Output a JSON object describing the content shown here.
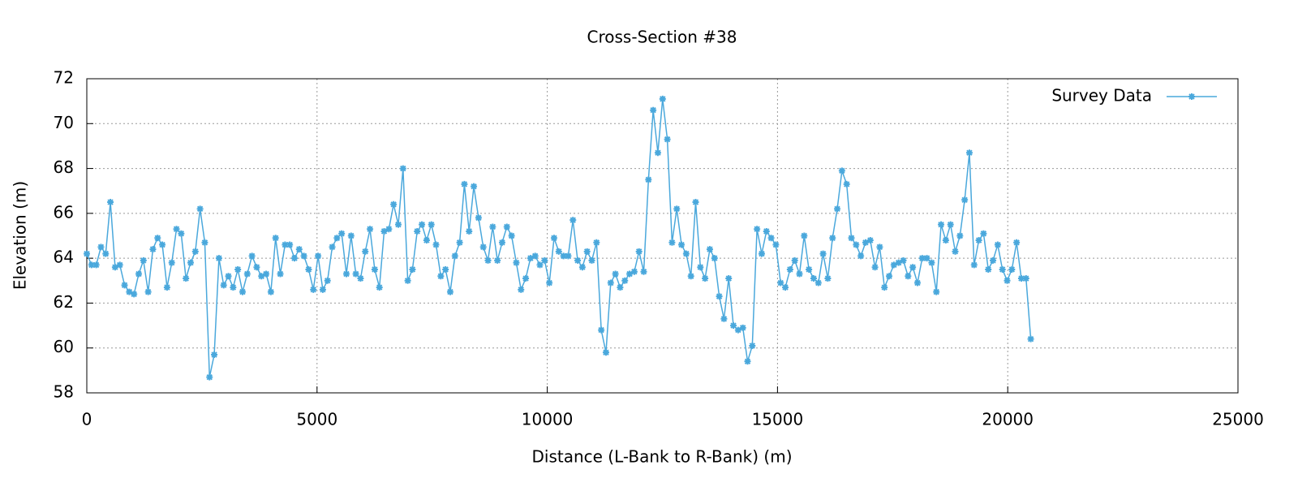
{
  "chart_data": {
    "type": "line",
    "title": "Cross-Section #38",
    "xlabel": "Distance (L-Bank to R-Bank) (m)",
    "ylabel": "Elevation (m)",
    "x": [
      0,
      102.5,
      205,
      307.5,
      410,
      512.5,
      615,
      717.5,
      820,
      922.5,
      1025,
      1127.5,
      1230,
      1332.5,
      1435,
      1537.5,
      1640,
      1742.5,
      1845,
      1947.5,
      2050,
      2152.5,
      2255,
      2357.5,
      2460,
      2562.5,
      2665,
      2767.5,
      2870,
      2972.5,
      3075,
      3177.5,
      3280,
      3382.5,
      3485,
      3587.5,
      3690,
      3792.5,
      3895,
      3997.5,
      4100,
      4202.5,
      4305,
      4407.5,
      4510,
      4612.5,
      4715,
      4817.5,
      4920,
      5022.5,
      5125,
      5227.5,
      5330,
      5432.5,
      5535,
      5637.5,
      5740,
      5842.5,
      5945,
      6047.5,
      6150,
      6252.5,
      6355,
      6457.5,
      6560,
      6662.5,
      6765,
      6867.5,
      6970,
      7072.5,
      7175,
      7277.5,
      7380,
      7482.5,
      7585,
      7687.5,
      7790,
      7892.5,
      7995,
      8097.5,
      8200,
      8302.5,
      8405,
      8507.5,
      8610,
      8712.5,
      8815,
      8917.5,
      9020,
      9122.5,
      9225,
      9327.5,
      9430,
      9532.5,
      9635,
      9737.5,
      9840,
      9942.5,
      10045,
      10147.5,
      10250,
      10352.5,
      10455,
      10557.5,
      10660,
      10762.5,
      10865,
      10967.5,
      11070,
      11172.5,
      11275,
      11377.5,
      11480,
      11582.5,
      11685,
      11787.5,
      11890,
      11992.5,
      12095,
      12197.5,
      12300,
      12402.5,
      12505,
      12607.5,
      12710,
      12812.5,
      12915,
      13017.5,
      13120,
      13222.5,
      13325,
      13427.5,
      13530,
      13632.5,
      13735,
      13837.5,
      13940,
      14042.5,
      14145,
      14247.5,
      14350,
      14452.5,
      14555,
      14657.5,
      14760,
      14862.5,
      14965,
      15067.5,
      15170,
      15272.5,
      15375,
      15477.5,
      15580,
      15682.5,
      15785,
      15887.5,
      15990,
      16092.5,
      16195,
      16297.5,
      16400,
      16502.5,
      16605,
      16707.5,
      16810,
      16912.5,
      17015,
      17117.5,
      17220,
      17322.5,
      17425,
      17527.5,
      17630,
      17732.5,
      17835,
      17937.5,
      18040,
      18142.5,
      18245,
      18347.5,
      18450,
      18552.5,
      18655,
      18757.5,
      18860,
      18962.5,
      19065,
      19167.5,
      19270,
      19372.5,
      19475,
      19577.5,
      19680,
      19782.5,
      19885,
      19987.5,
      20090,
      20192.5,
      20295,
      20397.5,
      20500
    ],
    "series": [
      {
        "name": "Survey Data",
        "color": "#4aa8dc",
        "values": [
          64.2,
          63.7,
          63.7,
          64.5,
          64.2,
          66.5,
          63.6,
          63.7,
          62.8,
          62.5,
          62.4,
          63.3,
          63.9,
          62.5,
          64.4,
          64.9,
          64.6,
          62.7,
          63.8,
          65.3,
          65.1,
          63.1,
          63.8,
          64.3,
          66.2,
          64.7,
          58.7,
          59.7,
          64.0,
          62.8,
          63.2,
          62.7,
          63.5,
          62.5,
          63.3,
          64.1,
          63.6,
          63.2,
          63.3,
          62.5,
          64.9,
          63.3,
          64.6,
          64.6,
          64.0,
          64.4,
          64.1,
          63.5,
          62.6,
          64.1,
          62.6,
          63.0,
          64.5,
          64.9,
          65.1,
          63.3,
          65.0,
          63.3,
          63.1,
          64.3,
          65.3,
          63.5,
          62.7,
          65.2,
          65.3,
          66.4,
          65.5,
          68.0,
          63.0,
          63.5,
          65.2,
          65.5,
          64.8,
          65.5,
          64.6,
          63.2,
          63.5,
          62.5,
          64.1,
          64.7,
          67.3,
          65.2,
          67.2,
          65.8,
          64.5,
          63.9,
          65.4,
          63.9,
          64.7,
          65.4,
          65.0,
          63.8,
          62.6,
          63.1,
          64.0,
          64.1,
          63.7,
          63.9,
          62.9,
          64.9,
          64.3,
          64.1,
          64.1,
          65.7,
          63.9,
          63.6,
          64.3,
          63.9,
          64.7,
          60.8,
          59.8,
          62.9,
          63.3,
          62.7,
          63.0,
          63.3,
          63.4,
          64.3,
          63.4,
          67.5,
          70.6,
          68.7,
          71.1,
          69.3,
          64.7,
          66.2,
          64.6,
          64.2,
          63.2,
          66.5,
          63.6,
          63.1,
          64.4,
          64.0,
          62.3,
          61.3,
          63.1,
          61.0,
          60.8,
          60.9,
          59.4,
          60.1,
          65.3,
          64.2,
          65.2,
          64.9,
          64.6,
          62.9,
          62.7,
          63.5,
          63.9,
          63.3,
          65.0,
          63.5,
          63.1,
          62.9,
          64.2,
          63.1,
          64.9,
          66.2,
          67.9,
          67.3,
          64.9,
          64.6,
          64.1,
          64.7,
          64.8,
          63.6,
          64.5,
          62.7,
          63.2,
          63.7,
          63.8,
          63.9,
          63.2,
          63.6,
          62.9,
          64.0,
          64.0,
          63.8,
          62.5,
          65.5,
          64.8,
          65.5,
          64.3,
          65.0,
          66.6,
          68.7,
          63.7,
          64.8,
          65.1,
          63.5,
          63.9,
          64.6,
          63.5,
          63.0,
          63.5,
          64.7,
          63.1,
          63.1,
          60.4
        ]
      }
    ],
    "xlim": [
      0,
      25000
    ],
    "xticks": [
      0,
      5000,
      10000,
      15000,
      20000,
      25000
    ],
    "ylim": [
      58,
      72
    ],
    "yticks": [
      58,
      60,
      62,
      64,
      66,
      68,
      70,
      72
    ],
    "grid": true,
    "legend": "upper right"
  }
}
